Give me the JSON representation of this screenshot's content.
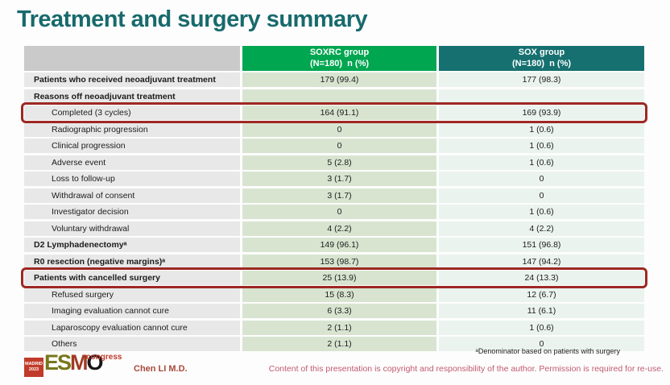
{
  "title": "Treatment and surgery summary",
  "table": {
    "header": {
      "col2_line1": "SOXRC group",
      "col2_line2": "(N=180)  n (%)",
      "col3_line1": "SOX group",
      "col3_line2": "(N=180)  n (%)"
    },
    "rows": [
      {
        "label": "Patients who received neoadjuvant treatment",
        "soxrc": "179 (99.4)",
        "sox": "177 (98.3)",
        "bold": true,
        "indent": false,
        "highlight": false
      },
      {
        "label": "Reasons off neoadjuvant treatment",
        "soxrc": "",
        "sox": "",
        "bold": true,
        "indent": false,
        "highlight": false
      },
      {
        "label": "Completed (3 cycles)",
        "soxrc": "164 (91.1)",
        "sox": "169 (93.9)",
        "bold": false,
        "indent": true,
        "highlight": true
      },
      {
        "label": "Radiographic progression",
        "soxrc": "0",
        "sox": "1 (0.6)",
        "bold": false,
        "indent": true,
        "highlight": false
      },
      {
        "label": "Clinical progression",
        "soxrc": "0",
        "sox": "1 (0.6)",
        "bold": false,
        "indent": true,
        "highlight": false
      },
      {
        "label": "Adverse event",
        "soxrc": "5 (2.8)",
        "sox": "1 (0.6)",
        "bold": false,
        "indent": true,
        "highlight": false
      },
      {
        "label": "Loss to follow-up",
        "soxrc": "3 (1.7)",
        "sox": "0",
        "bold": false,
        "indent": true,
        "highlight": false
      },
      {
        "label": "Withdrawal of consent",
        "soxrc": "3 (1.7)",
        "sox": "0",
        "bold": false,
        "indent": true,
        "highlight": false
      },
      {
        "label": "Investigator decision",
        "soxrc": "0",
        "sox": "1 (0.6)",
        "bold": false,
        "indent": true,
        "highlight": false
      },
      {
        "label": "Voluntary withdrawal",
        "soxrc": "4 (2.2)",
        "sox": "4 (2.2)",
        "bold": false,
        "indent": true,
        "highlight": false
      },
      {
        "label": "D2 Lymphadenectomyᵃ",
        "soxrc": "149 (96.1)",
        "sox": "151 (96.8)",
        "bold": true,
        "indent": false,
        "highlight": false
      },
      {
        "label": "R0 resection (negative margins)ᵃ",
        "soxrc": "153 (98.7)",
        "sox": "147 (94.2)",
        "bold": true,
        "indent": false,
        "highlight": false
      },
      {
        "label": "Patients with cancelled surgery",
        "soxrc": "25 (13.9)",
        "sox": "24 (13.3)",
        "bold": true,
        "indent": false,
        "highlight": true
      },
      {
        "label": "Refused surgery",
        "soxrc": "15 (8.3)",
        "sox": "12 (6.7)",
        "bold": false,
        "indent": true,
        "highlight": false
      },
      {
        "label": "Imaging evaluation cannot cure",
        "soxrc": "6 (3.3)",
        "sox": "11 (6.1)",
        "bold": false,
        "indent": true,
        "highlight": false
      },
      {
        "label": "Laparoscopy evaluation cannot cure",
        "soxrc": "2 (1.1)",
        "sox": "1 (0.6)",
        "bold": false,
        "indent": true,
        "highlight": false
      },
      {
        "label": "Others",
        "soxrc": "2 (1.1)",
        "sox": "0",
        "bold": false,
        "indent": true,
        "highlight": false
      }
    ]
  },
  "footer": {
    "footnote": "ᵃDenominator based on patients with surgery",
    "copyright": "Content of this presentation is copyright and responsibility of the author.  Permission is required for re-use.",
    "author": "Chen LI M.D.",
    "logo": {
      "badge_line1": "MADRID",
      "badge_line2": "2023",
      "esmo_e": "E",
      "esmo_s": "S",
      "esmo_m": "M",
      "esmo_o": "O",
      "congress": "congress"
    }
  },
  "colors": {
    "title": "#186a6c",
    "soxrc_header": "#00a650",
    "sox_header": "#15706f",
    "label_cell_bg": "#e9e8e8",
    "soxrc_cell_bg": "#d8e4d0",
    "sox_cell_bg": "#ebf3ee",
    "highlight_border": "#9d2823",
    "copyright_text": "#c25a70",
    "author_text": "#a8493b"
  }
}
